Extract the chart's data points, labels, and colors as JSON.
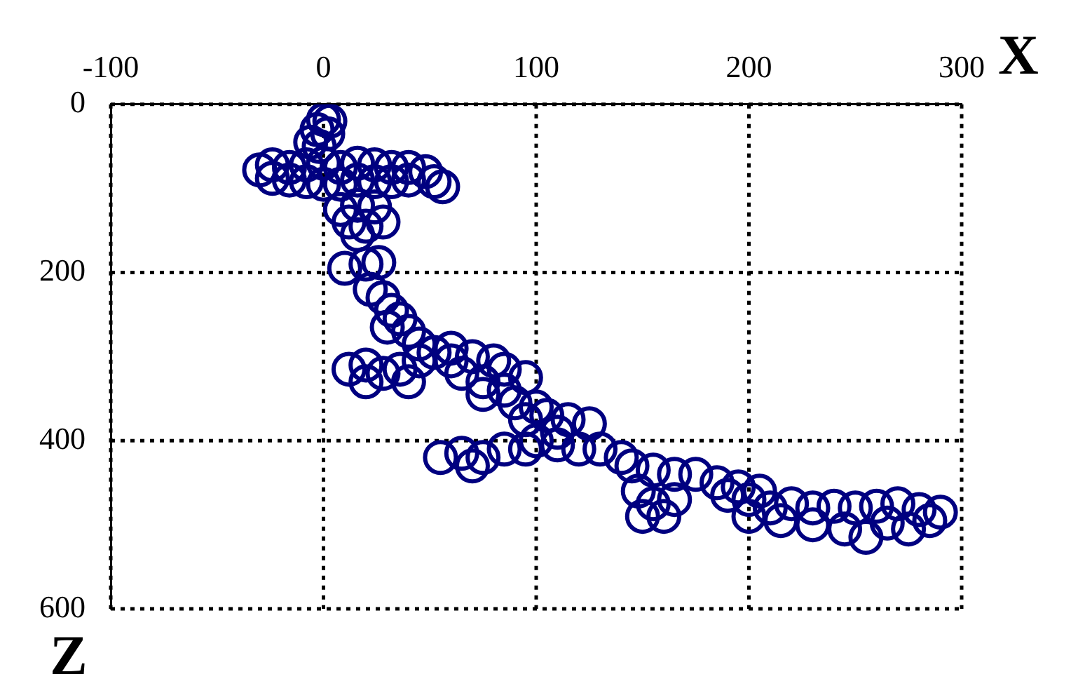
{
  "chart_data": {
    "type": "scatter",
    "xlabel": "X",
    "ylabel": "Z",
    "xlim": [
      -100,
      300
    ],
    "xticks": [
      -100,
      0,
      100,
      200,
      300
    ],
    "ylim": [
      600,
      0
    ],
    "yticks": [
      0,
      200,
      400,
      600
    ],
    "grid": true,
    "marker": "circle",
    "legend": false,
    "series": [
      {
        "color": "#000080",
        "x": [
          0,
          3,
          -3,
          2,
          -6,
          -2,
          -30,
          -24,
          -24,
          -16,
          -16,
          -8,
          -8,
          0,
          0,
          8,
          8,
          16,
          16,
          24,
          24,
          32,
          32,
          40,
          40,
          48,
          52,
          56,
          8,
          16,
          24,
          12,
          20,
          28,
          16,
          10,
          20,
          26,
          22,
          28,
          32,
          36,
          30,
          40,
          12,
          20,
          28,
          36,
          20,
          40,
          45,
          45,
          52,
          60,
          60,
          70,
          80,
          85,
          65,
          75,
          85,
          95,
          75,
          90,
          100,
          95,
          105,
          115,
          125,
          110,
          100,
          55,
          65,
          75,
          85,
          70,
          95,
          110,
          120,
          130,
          140,
          145,
          155,
          165,
          175,
          185,
          195,
          205,
          148,
          155,
          150,
          160,
          165,
          200,
          210,
          220,
          230,
          240,
          250,
          260,
          270,
          280,
          290,
          215,
          230,
          245,
          255,
          265,
          275,
          285,
          200,
          190
        ],
        "values": [
          18,
          20,
          30,
          35,
          45,
          50,
          78,
          72,
          88,
          75,
          90,
          72,
          92,
          70,
          95,
          75,
          95,
          70,
          90,
          72,
          92,
          75,
          92,
          75,
          90,
          80,
          92,
          98,
          125,
          120,
          122,
          140,
          145,
          140,
          155,
          195,
          190,
          188,
          220,
          230,
          245,
          255,
          265,
          270,
          315,
          310,
          320,
          315,
          330,
          330,
          305,
          285,
          295,
          290,
          305,
          300,
          305,
          315,
          320,
          330,
          340,
          325,
          345,
          355,
          360,
          375,
          370,
          375,
          380,
          390,
          400,
          420,
          415,
          420,
          410,
          430,
          410,
          405,
          410,
          410,
          420,
          430,
          435,
          440,
          440,
          450,
          455,
          460,
          460,
          475,
          490,
          490,
          470,
          470,
          480,
          475,
          480,
          478,
          480,
          478,
          475,
          482,
          485,
          495,
          500,
          505,
          515,
          498,
          505,
          495,
          490,
          465
        ]
      }
    ]
  }
}
